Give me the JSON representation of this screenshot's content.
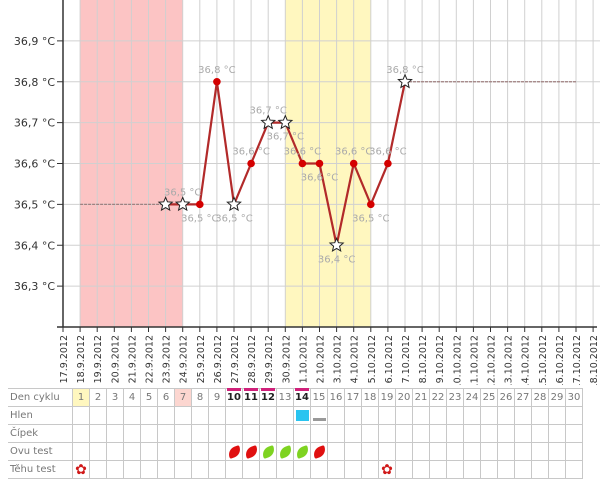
{
  "chart_data": {
    "type": "line",
    "title": "",
    "xlabel": "",
    "ylabel": "",
    "ylim": [
      36.2,
      37.0
    ],
    "yticks": [
      36.3,
      36.4,
      36.5,
      36.6,
      36.7,
      36.8,
      36.9
    ],
    "ytick_labels": [
      "36,3 °C",
      "36,4 °C",
      "36,5 °C",
      "36,6 °C",
      "36,7 °C",
      "36,8 °C",
      "36,9 °C"
    ],
    "x_labels": [
      "17.9.2012",
      "18.9.2012",
      "19.9.2012",
      "20.9.2012",
      "21.9.2012",
      "22.9.2012",
      "23.9.2012",
      "24.9.2012",
      "25.9.2012",
      "26.9.2012",
      "27.9.2012",
      "28.9.2012",
      "29.9.2012",
      "30.9.2012",
      "1.10.2012",
      "2.10.2012",
      "3.10.2012",
      "4.10.2012",
      "5.10.2012",
      "6.10.2012",
      "7.10.2012",
      "8.10.2012",
      "9.10.2012",
      "10.10.2012",
      "11.10.2012",
      "12.10.2012",
      "13.10.2012",
      "14.10.2012",
      "15.10.2012",
      "16.10.2012",
      "17.10.2012",
      "18.10.2012"
    ],
    "grid": true,
    "bands": [
      {
        "from": "18.9.2012",
        "to": "24.9.2012",
        "color": "#fcc4c4"
      },
      {
        "from": "30.9.2012",
        "to": "5.10.2012",
        "color": "#fff7bf"
      }
    ],
    "baseline_before": {
      "from": "18.9.2012",
      "to": "23.9.2012",
      "value": 36.5
    },
    "baseline_after": {
      "from": "7.10.2012",
      "to": "17.10.2012",
      "value": 36.8
    },
    "line_color": "#b22a2a",
    "point_color": "#d40000",
    "points": [
      {
        "x": "23.9.2012",
        "y": 36.5,
        "marker": "star",
        "label": "",
        "label_pos": "above"
      },
      {
        "x": "24.9.2012",
        "y": 36.5,
        "marker": "star",
        "label": "36,5 °C",
        "label_pos": "above"
      },
      {
        "x": "25.9.2012",
        "y": 36.5,
        "marker": "dot",
        "label": "36,5 °C",
        "label_pos": "below"
      },
      {
        "x": "26.9.2012",
        "y": 36.8,
        "marker": "dot",
        "label": "36,8 °C",
        "label_pos": "above"
      },
      {
        "x": "27.9.2012",
        "y": 36.5,
        "marker": "star",
        "label": "36,5 °C",
        "label_pos": "below"
      },
      {
        "x": "28.9.2012",
        "y": 36.6,
        "marker": "dot",
        "label": "36,6 °C",
        "label_pos": "above"
      },
      {
        "x": "29.9.2012",
        "y": 36.7,
        "marker": "star",
        "label": "36,7 °C",
        "label_pos": "above"
      },
      {
        "x": "30.9.2012",
        "y": 36.7,
        "marker": "star",
        "label": "36,7 °C",
        "label_pos": "below"
      },
      {
        "x": "1.10.2012",
        "y": 36.6,
        "marker": "dot",
        "label": "36,6 °C",
        "label_pos": "above"
      },
      {
        "x": "2.10.2012",
        "y": 36.6,
        "marker": "dot",
        "label": "36,6 °C",
        "label_pos": "below"
      },
      {
        "x": "3.10.2012",
        "y": 36.4,
        "marker": "star",
        "label": "36,4 °C",
        "label_pos": "below"
      },
      {
        "x": "4.10.2012",
        "y": 36.6,
        "marker": "dot",
        "label": "36,6 °C",
        "label_pos": "above"
      },
      {
        "x": "5.10.2012",
        "y": 36.5,
        "marker": "dot",
        "label": "36,5 °C",
        "label_pos": "below"
      },
      {
        "x": "6.10.2012",
        "y": 36.6,
        "marker": "dot",
        "label": "36,6 °C",
        "label_pos": "above"
      },
      {
        "x": "7.10.2012",
        "y": 36.8,
        "marker": "star",
        "label": "36,8 °C",
        "label_pos": "above"
      }
    ]
  },
  "calendar": {
    "rows": [
      "Den cyklu",
      "Hlen",
      "Čípek",
      "Ovu test",
      "Těhu test"
    ],
    "days": [
      "1",
      "2",
      "3",
      "4",
      "5",
      "6",
      "7",
      "8",
      "9",
      "10",
      "11",
      "12",
      "13",
      "14",
      "15",
      "16",
      "17",
      "18",
      "19",
      "20",
      "21",
      "22",
      "23",
      "24",
      "25",
      "26",
      "27",
      "28",
      "29",
      "30"
    ],
    "day_highlight": {
      "1": "#fff7bf",
      "7": "#fcd6d0"
    },
    "bold_days": [
      "10",
      "11",
      "12",
      "14"
    ],
    "hlen": {
      "14": {
        "icon": "cyan-square",
        "color": "#29c4f0"
      },
      "15": {
        "icon": "grey-bar",
        "color": "#999999"
      }
    },
    "ovu_test": {
      "10": "red",
      "11": "red",
      "12": "green",
      "13": "green",
      "14": "green",
      "15": "red"
    },
    "tehu_test": {
      "1": "red-flower",
      "19": "red-flower"
    }
  }
}
